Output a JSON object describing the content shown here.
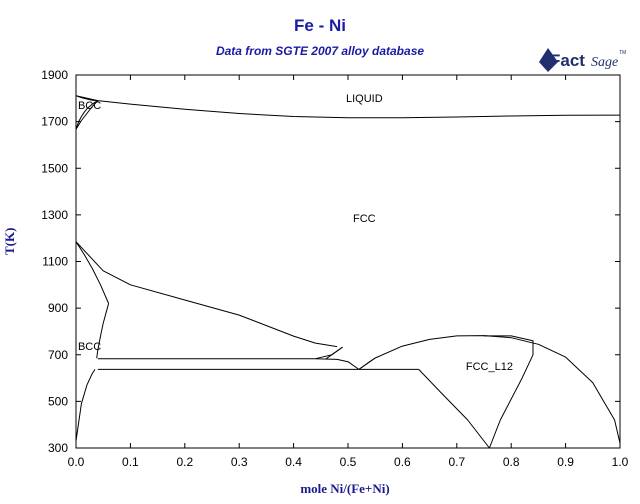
{
  "chart_data": {
    "type": "line",
    "title": "Fe - Ni",
    "subtitle": "Data from SGTE 2007 alloy database",
    "xlabel": "mole Ni/(Fe+Ni)",
    "ylabel": "T(K)",
    "xlim": [
      0,
      1
    ],
    "ylim": [
      300,
      1900
    ],
    "x_ticks": [
      "0.0",
      "0.1",
      "0.2",
      "0.3",
      "0.4",
      "0.5",
      "0.6",
      "0.7",
      "0.8",
      "0.9",
      "1.0"
    ],
    "y_ticks": [
      "300",
      "500",
      "700",
      "900",
      "1100",
      "1300",
      "1500",
      "1700",
      "1900"
    ],
    "grid": false,
    "series": [
      {
        "x": [
          0,
          0.04,
          0.1,
          0.2,
          0.3,
          0.4,
          0.5,
          0.6,
          0.7,
          0.8,
          0.9,
          1.0
        ],
        "y": [
          1811,
          1790,
          1775,
          1753,
          1735,
          1722,
          1717,
          1717,
          1720,
          1724,
          1727,
          1728
        ]
      },
      {
        "x": [
          0,
          0.01,
          0.02,
          0.03,
          0.04
        ],
        "y": [
          1811,
          1803,
          1797,
          1792,
          1790
        ]
      },
      {
        "x": [
          0,
          0.005,
          0.01,
          0.015,
          0.02,
          0.03,
          0.04
        ],
        "y": [
          1667,
          1700,
          1722,
          1740,
          1755,
          1775,
          1790
        ]
      },
      {
        "x": [
          0,
          0.01,
          0.02,
          0.03,
          0.04
        ],
        "y": [
          1667,
          1705,
          1735,
          1765,
          1790
        ]
      },
      {
        "x": [
          0,
          0.015,
          0.03,
          0.045,
          0.06
        ],
        "y": [
          1185,
          1130,
          1070,
          1000,
          920
        ]
      },
      {
        "x": [
          0.06,
          0.05,
          0.045,
          0.04,
          0.038
        ],
        "y": [
          920,
          835,
          780,
          720,
          685
        ]
      },
      {
        "x": [
          0,
          0.05,
          0.1,
          0.2,
          0.3,
          0.4,
          0.44,
          0.48
        ],
        "y": [
          1185,
          1060,
          1000,
          935,
          870,
          780,
          750,
          735
        ]
      },
      {
        "x": [
          0.04,
          0.44
        ],
        "y": [
          683,
          683
        ]
      },
      {
        "x": [
          0.44,
          0.47,
          0.49
        ],
        "y": [
          683,
          700,
          733
        ]
      },
      {
        "x": [
          0.46,
          0.49
        ],
        "y": [
          683,
          733
        ]
      },
      {
        "x": [
          0.44,
          0.48,
          0.5,
          0.52
        ],
        "y": [
          683,
          680,
          670,
          637
        ]
      },
      {
        "x": [
          0.52,
          0.55,
          0.6,
          0.65,
          0.7,
          0.75,
          0.8,
          0.85,
          0.9,
          0.95,
          0.99,
          1.0
        ],
        "y": [
          637,
          686,
          737,
          766,
          781,
          782,
          773,
          745,
          690,
          580,
          420,
          320
        ]
      },
      {
        "x": [
          0.52,
          0.535,
          0.55
        ],
        "y": [
          637,
          662,
          686
        ]
      },
      {
        "x": [
          0.04,
          0.63
        ],
        "y": [
          637,
          637
        ]
      },
      {
        "x": [
          0.63,
          0.67,
          0.72,
          0.76
        ],
        "y": [
          637,
          540,
          420,
          300
        ]
      },
      {
        "x": [
          0.76,
          0.78,
          0.82,
          0.84,
          0.84,
          0.8,
          0.75
        ],
        "y": [
          300,
          420,
          600,
          700,
          760,
          781,
          781
        ]
      },
      {
        "x": [
          0,
          0.01,
          0.02,
          0.03,
          0.035
        ],
        "y": [
          330,
          490,
          570,
          620,
          637
        ]
      }
    ],
    "annotations": [
      "LIQUID",
      "BCC",
      "FCC",
      "BCC",
      "FCC_L12"
    ]
  },
  "logo": {
    "text_main": "Fact",
    "text_sub": "Sage",
    "mark": "TM"
  }
}
